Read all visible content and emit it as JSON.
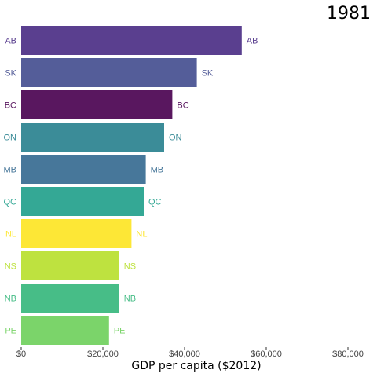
{
  "chart_data": {
    "type": "bar",
    "orientation": "horizontal",
    "year": "1981",
    "xlabel": "GDP per capita ($2012)",
    "ylabel": "",
    "xlim": [
      0,
      80000
    ],
    "x_ticks": [
      0,
      20000,
      40000,
      60000,
      80000
    ],
    "x_tick_labels": [
      "$0",
      "$20,000",
      "$40,000",
      "$60,000",
      "$80,000"
    ],
    "grid": false,
    "legend": "none",
    "categories": [
      "AB",
      "SK",
      "BC",
      "ON",
      "MB",
      "QC",
      "NL",
      "NS",
      "NB",
      "PE"
    ],
    "values": [
      54000,
      43000,
      37000,
      35000,
      30500,
      30000,
      27000,
      24000,
      24000,
      21500
    ],
    "colors": [
      "#5a3f8f",
      "#545d99",
      "#59175f",
      "#3b8c98",
      "#47779a",
      "#34a895",
      "#fde736",
      "#bee23f",
      "#47bd87",
      "#7bd46a"
    ]
  }
}
